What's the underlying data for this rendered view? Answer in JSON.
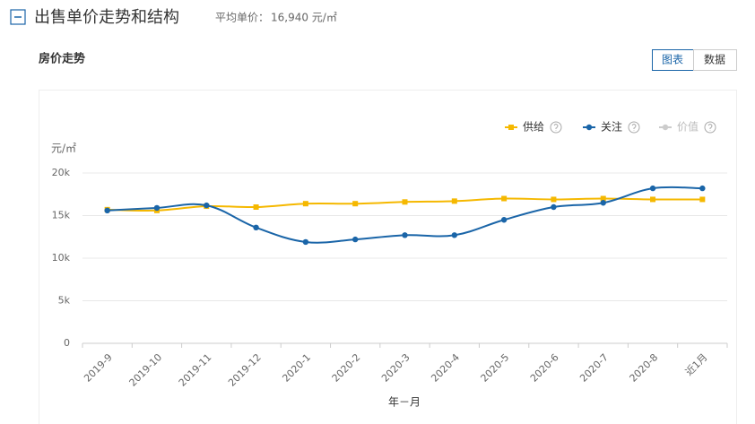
{
  "header": {
    "title": "出售单价走势和结构",
    "avg_label": "平均单价：",
    "avg_value": "16,940 元/㎡"
  },
  "section_title": "房价走势",
  "tabs": [
    "图表",
    "数据"
  ],
  "chart_data": {
    "type": "line",
    "y_label": "元/㎡",
    "x_label": "年－月",
    "categories": [
      "2019-9",
      "2019-10",
      "2019-11",
      "2019-12",
      "2020-1",
      "2020-2",
      "2020-3",
      "2020-4",
      "2020-5",
      "2020-6",
      "2020-7",
      "2020-8",
      "近1月"
    ],
    "series": [
      {
        "name": "供给",
        "color": "#f5b800",
        "marker": "square",
        "values": [
          15700,
          15600,
          16100,
          16000,
          16400,
          16400,
          16600,
          16700,
          17000,
          16900,
          17000,
          16900,
          16900
        ]
      },
      {
        "name": "关注",
        "color": "#1a65a8",
        "marker": "circle",
        "values": [
          15600,
          15900,
          16200,
          13600,
          11900,
          12200,
          12700,
          12700,
          14500,
          16000,
          16500,
          18200,
          18200
        ]
      },
      {
        "name": "价值",
        "color": "#cccccc",
        "marker": "circle",
        "disabled": true,
        "values": [
          null,
          null,
          null,
          null,
          null,
          null,
          null,
          null,
          null,
          null,
          null,
          null,
          null
        ]
      }
    ],
    "ylim": [
      0,
      20000
    ],
    "yticks": [
      0,
      {
        "value": 5000,
        "label": "5k"
      },
      {
        "value": 10000,
        "label": "10k"
      },
      {
        "value": 15000,
        "label": "15k"
      },
      {
        "value": 20000,
        "label": "20k"
      }
    ],
    "grid": true,
    "legend": "top-right"
  }
}
